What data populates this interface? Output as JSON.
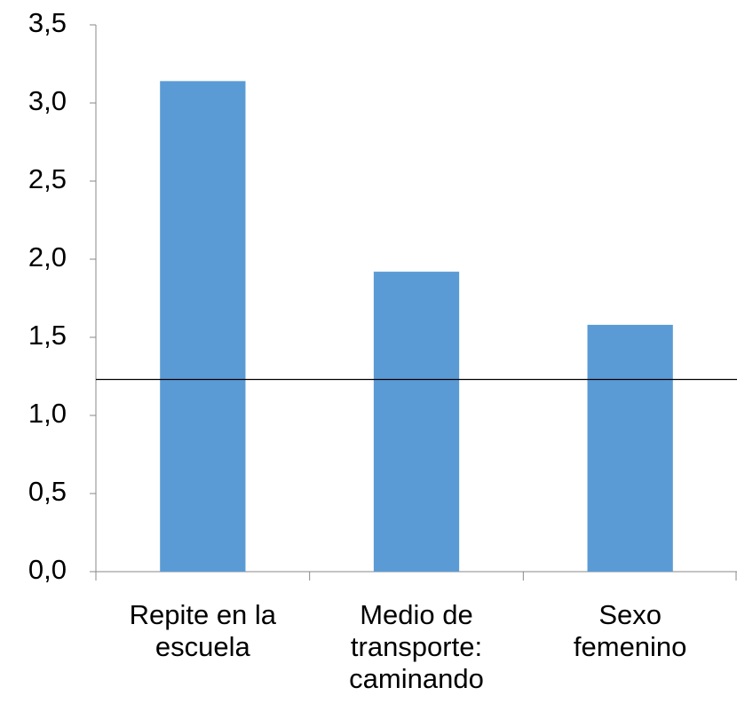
{
  "chart_data": {
    "type": "bar",
    "categories": [
      "Repite en la escuela",
      "Medio de transporte: caminando",
      "Sexo femenino"
    ],
    "values": [
      3.14,
      1.92,
      1.58
    ],
    "color": "#5b9bd5",
    "reference_line": 1.23,
    "ylim": [
      0,
      3.5
    ],
    "yticks": [
      {
        "value": 0,
        "label": "0,0"
      },
      {
        "value": 0.5,
        "label": "0,5"
      },
      {
        "value": 1,
        "label": "1,0"
      },
      {
        "value": 1.5,
        "label": "1,5"
      },
      {
        "value": 2,
        "label": "2,0"
      },
      {
        "value": 2.5,
        "label": "2,5"
      },
      {
        "value": 3,
        "label": "3,0"
      },
      {
        "value": 3.5,
        "label": "3,5"
      }
    ],
    "grid": false
  }
}
